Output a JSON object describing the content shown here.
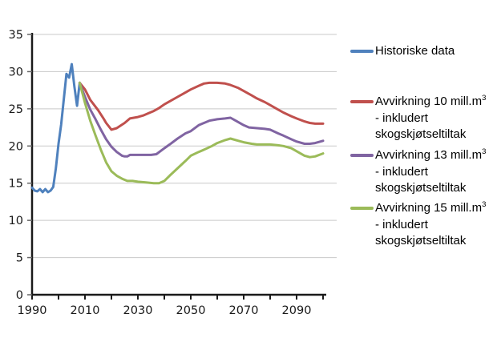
{
  "colors": {
    "background": "#ffffff",
    "axis": "#1a1a1a",
    "gridline": "#c9c9c9",
    "tick": "#666666",
    "text": "#1a1a1a",
    "series_blue": "#4F81BD",
    "series_red": "#C0504D",
    "series_purple": "#8064A2",
    "series_green": "#9BBB59"
  },
  "legend": {
    "items": [
      {
        "id": "historiske-data",
        "color": "#4F81BD",
        "line1": "Historiske data",
        "sup": "",
        "line2": "",
        "line3": ""
      },
      {
        "id": "avvirkning-10",
        "color": "#C0504D",
        "line1": "Avvirkning 10 mill.m",
        "sup": "3",
        "line2": "- inkludert",
        "line3": "skogskjøtseltiltak"
      },
      {
        "id": "avvirkning-13",
        "color": "#8064A2",
        "line1": "Avvirkning 13 mill.m",
        "sup": "3",
        "line2": "- inkludert",
        "line3": "skogskjøtseltiltak"
      },
      {
        "id": "avvirkning-15",
        "color": "#9BBB59",
        "line1": "Avvirkning 15 mill.m",
        "sup": "3",
        "line2": "- inkludert",
        "line3": "skogskjøtseltiltak"
      }
    ]
  },
  "chart_data": {
    "type": "line",
    "title": "",
    "xlabel": "",
    "ylabel": "",
    "grid": "horizontal",
    "legend_position": "right",
    "x_axis": {
      "min": 1990,
      "max": 2100,
      "tick_interval": 10,
      "labels": [
        1990,
        2010,
        2030,
        2050,
        2070,
        2090
      ]
    },
    "y_axis": {
      "min": 0,
      "max": 35,
      "tick_interval": 5,
      "ticks": [
        0,
        5,
        10,
        15,
        20,
        25,
        30,
        35
      ]
    },
    "series": [
      {
        "id": "historiske-data",
        "name": "Historiske data",
        "color": "#4F81BD",
        "points": [
          [
            1990,
            14.4
          ],
          [
            1991,
            14.0
          ],
          [
            1992,
            13.9
          ],
          [
            1993,
            14.2
          ],
          [
            1994,
            13.8
          ],
          [
            1995,
            14.2
          ],
          [
            1996,
            13.8
          ],
          [
            1997,
            14.0
          ],
          [
            1998,
            14.5
          ],
          [
            1999,
            17.0
          ],
          [
            2000,
            20.3
          ],
          [
            2001,
            22.9
          ],
          [
            2002,
            26.3
          ],
          [
            2003,
            29.7
          ],
          [
            2004,
            29.2
          ],
          [
            2005,
            31.0
          ],
          [
            2006,
            28.0
          ],
          [
            2007,
            25.4
          ],
          [
            2008,
            28.5
          ]
        ]
      },
      {
        "id": "avvirkning-10",
        "name": "Avvirkning 10 mill.m³ - inkludert skogskjøtseltiltak",
        "color": "#C0504D",
        "points": [
          [
            2008,
            28.5
          ],
          [
            2010,
            27.6
          ],
          [
            2012,
            26.2
          ],
          [
            2015,
            24.8
          ],
          [
            2017,
            23.7
          ],
          [
            2018,
            23.1
          ],
          [
            2020,
            22.2
          ],
          [
            2022,
            22.4
          ],
          [
            2025,
            23.1
          ],
          [
            2027,
            23.7
          ],
          [
            2030,
            23.9
          ],
          [
            2032,
            24.1
          ],
          [
            2034,
            24.4
          ],
          [
            2036,
            24.7
          ],
          [
            2038,
            25.1
          ],
          [
            2040,
            25.6
          ],
          [
            2042,
            26.0
          ],
          [
            2045,
            26.6
          ],
          [
            2048,
            27.2
          ],
          [
            2050,
            27.6
          ],
          [
            2053,
            28.1
          ],
          [
            2055,
            28.4
          ],
          [
            2057,
            28.5
          ],
          [
            2060,
            28.5
          ],
          [
            2063,
            28.4
          ],
          [
            2065,
            28.2
          ],
          [
            2068,
            27.8
          ],
          [
            2070,
            27.4
          ],
          [
            2073,
            26.8
          ],
          [
            2075,
            26.4
          ],
          [
            2078,
            25.9
          ],
          [
            2080,
            25.5
          ],
          [
            2083,
            24.9
          ],
          [
            2085,
            24.5
          ],
          [
            2088,
            24.0
          ],
          [
            2090,
            23.7
          ],
          [
            2093,
            23.3
          ],
          [
            2095,
            23.1
          ],
          [
            2097,
            23.0
          ],
          [
            2100,
            23.0
          ]
        ]
      },
      {
        "id": "avvirkning-13",
        "name": "Avvirkning 13 mill.m³ - inkludert skogskjøtseltiltak",
        "color": "#8064A2",
        "points": [
          [
            2008,
            28.5
          ],
          [
            2010,
            26.6
          ],
          [
            2012,
            24.9
          ],
          [
            2014,
            23.6
          ],
          [
            2016,
            22.2
          ],
          [
            2018,
            20.9
          ],
          [
            2020,
            19.9
          ],
          [
            2022,
            19.2
          ],
          [
            2024,
            18.7
          ],
          [
            2025,
            18.6
          ],
          [
            2026,
            18.6
          ],
          [
            2027,
            18.8
          ],
          [
            2030,
            18.8
          ],
          [
            2033,
            18.8
          ],
          [
            2035,
            18.8
          ],
          [
            2037,
            18.9
          ],
          [
            2040,
            19.7
          ],
          [
            2042,
            20.2
          ],
          [
            2045,
            21.0
          ],
          [
            2048,
            21.7
          ],
          [
            2050,
            22.0
          ],
          [
            2053,
            22.8
          ],
          [
            2055,
            23.1
          ],
          [
            2057,
            23.4
          ],
          [
            2060,
            23.6
          ],
          [
            2063,
            23.7
          ],
          [
            2065,
            23.8
          ],
          [
            2067,
            23.4
          ],
          [
            2070,
            22.8
          ],
          [
            2072,
            22.5
          ],
          [
            2075,
            22.4
          ],
          [
            2078,
            22.3
          ],
          [
            2080,
            22.2
          ],
          [
            2083,
            21.7
          ],
          [
            2085,
            21.4
          ],
          [
            2088,
            20.9
          ],
          [
            2090,
            20.6
          ],
          [
            2093,
            20.3
          ],
          [
            2095,
            20.3
          ],
          [
            2097,
            20.4
          ],
          [
            2100,
            20.7
          ]
        ]
      },
      {
        "id": "avvirkning-15",
        "name": "Avvirkning 15 mill.m³ - inkludert skogskjøtseltiltak",
        "color": "#9BBB59",
        "points": [
          [
            2008,
            28.5
          ],
          [
            2010,
            25.8
          ],
          [
            2012,
            23.4
          ],
          [
            2014,
            21.4
          ],
          [
            2016,
            19.5
          ],
          [
            2018,
            17.8
          ],
          [
            2020,
            16.6
          ],
          [
            2022,
            16.0
          ],
          [
            2024,
            15.6
          ],
          [
            2026,
            15.3
          ],
          [
            2028,
            15.3
          ],
          [
            2030,
            15.2
          ],
          [
            2033,
            15.1
          ],
          [
            2036,
            15.0
          ],
          [
            2038,
            15.0
          ],
          [
            2040,
            15.3
          ],
          [
            2042,
            16.0
          ],
          [
            2045,
            17.0
          ],
          [
            2048,
            18.0
          ],
          [
            2050,
            18.7
          ],
          [
            2053,
            19.2
          ],
          [
            2055,
            19.5
          ],
          [
            2058,
            20.0
          ],
          [
            2060,
            20.4
          ],
          [
            2063,
            20.8
          ],
          [
            2065,
            21.0
          ],
          [
            2068,
            20.7
          ],
          [
            2070,
            20.5
          ],
          [
            2073,
            20.3
          ],
          [
            2075,
            20.2
          ],
          [
            2078,
            20.2
          ],
          [
            2080,
            20.2
          ],
          [
            2083,
            20.1
          ],
          [
            2085,
            20.0
          ],
          [
            2088,
            19.7
          ],
          [
            2090,
            19.3
          ],
          [
            2093,
            18.7
          ],
          [
            2095,
            18.5
          ],
          [
            2097,
            18.6
          ],
          [
            2100,
            19.0
          ]
        ]
      }
    ]
  }
}
